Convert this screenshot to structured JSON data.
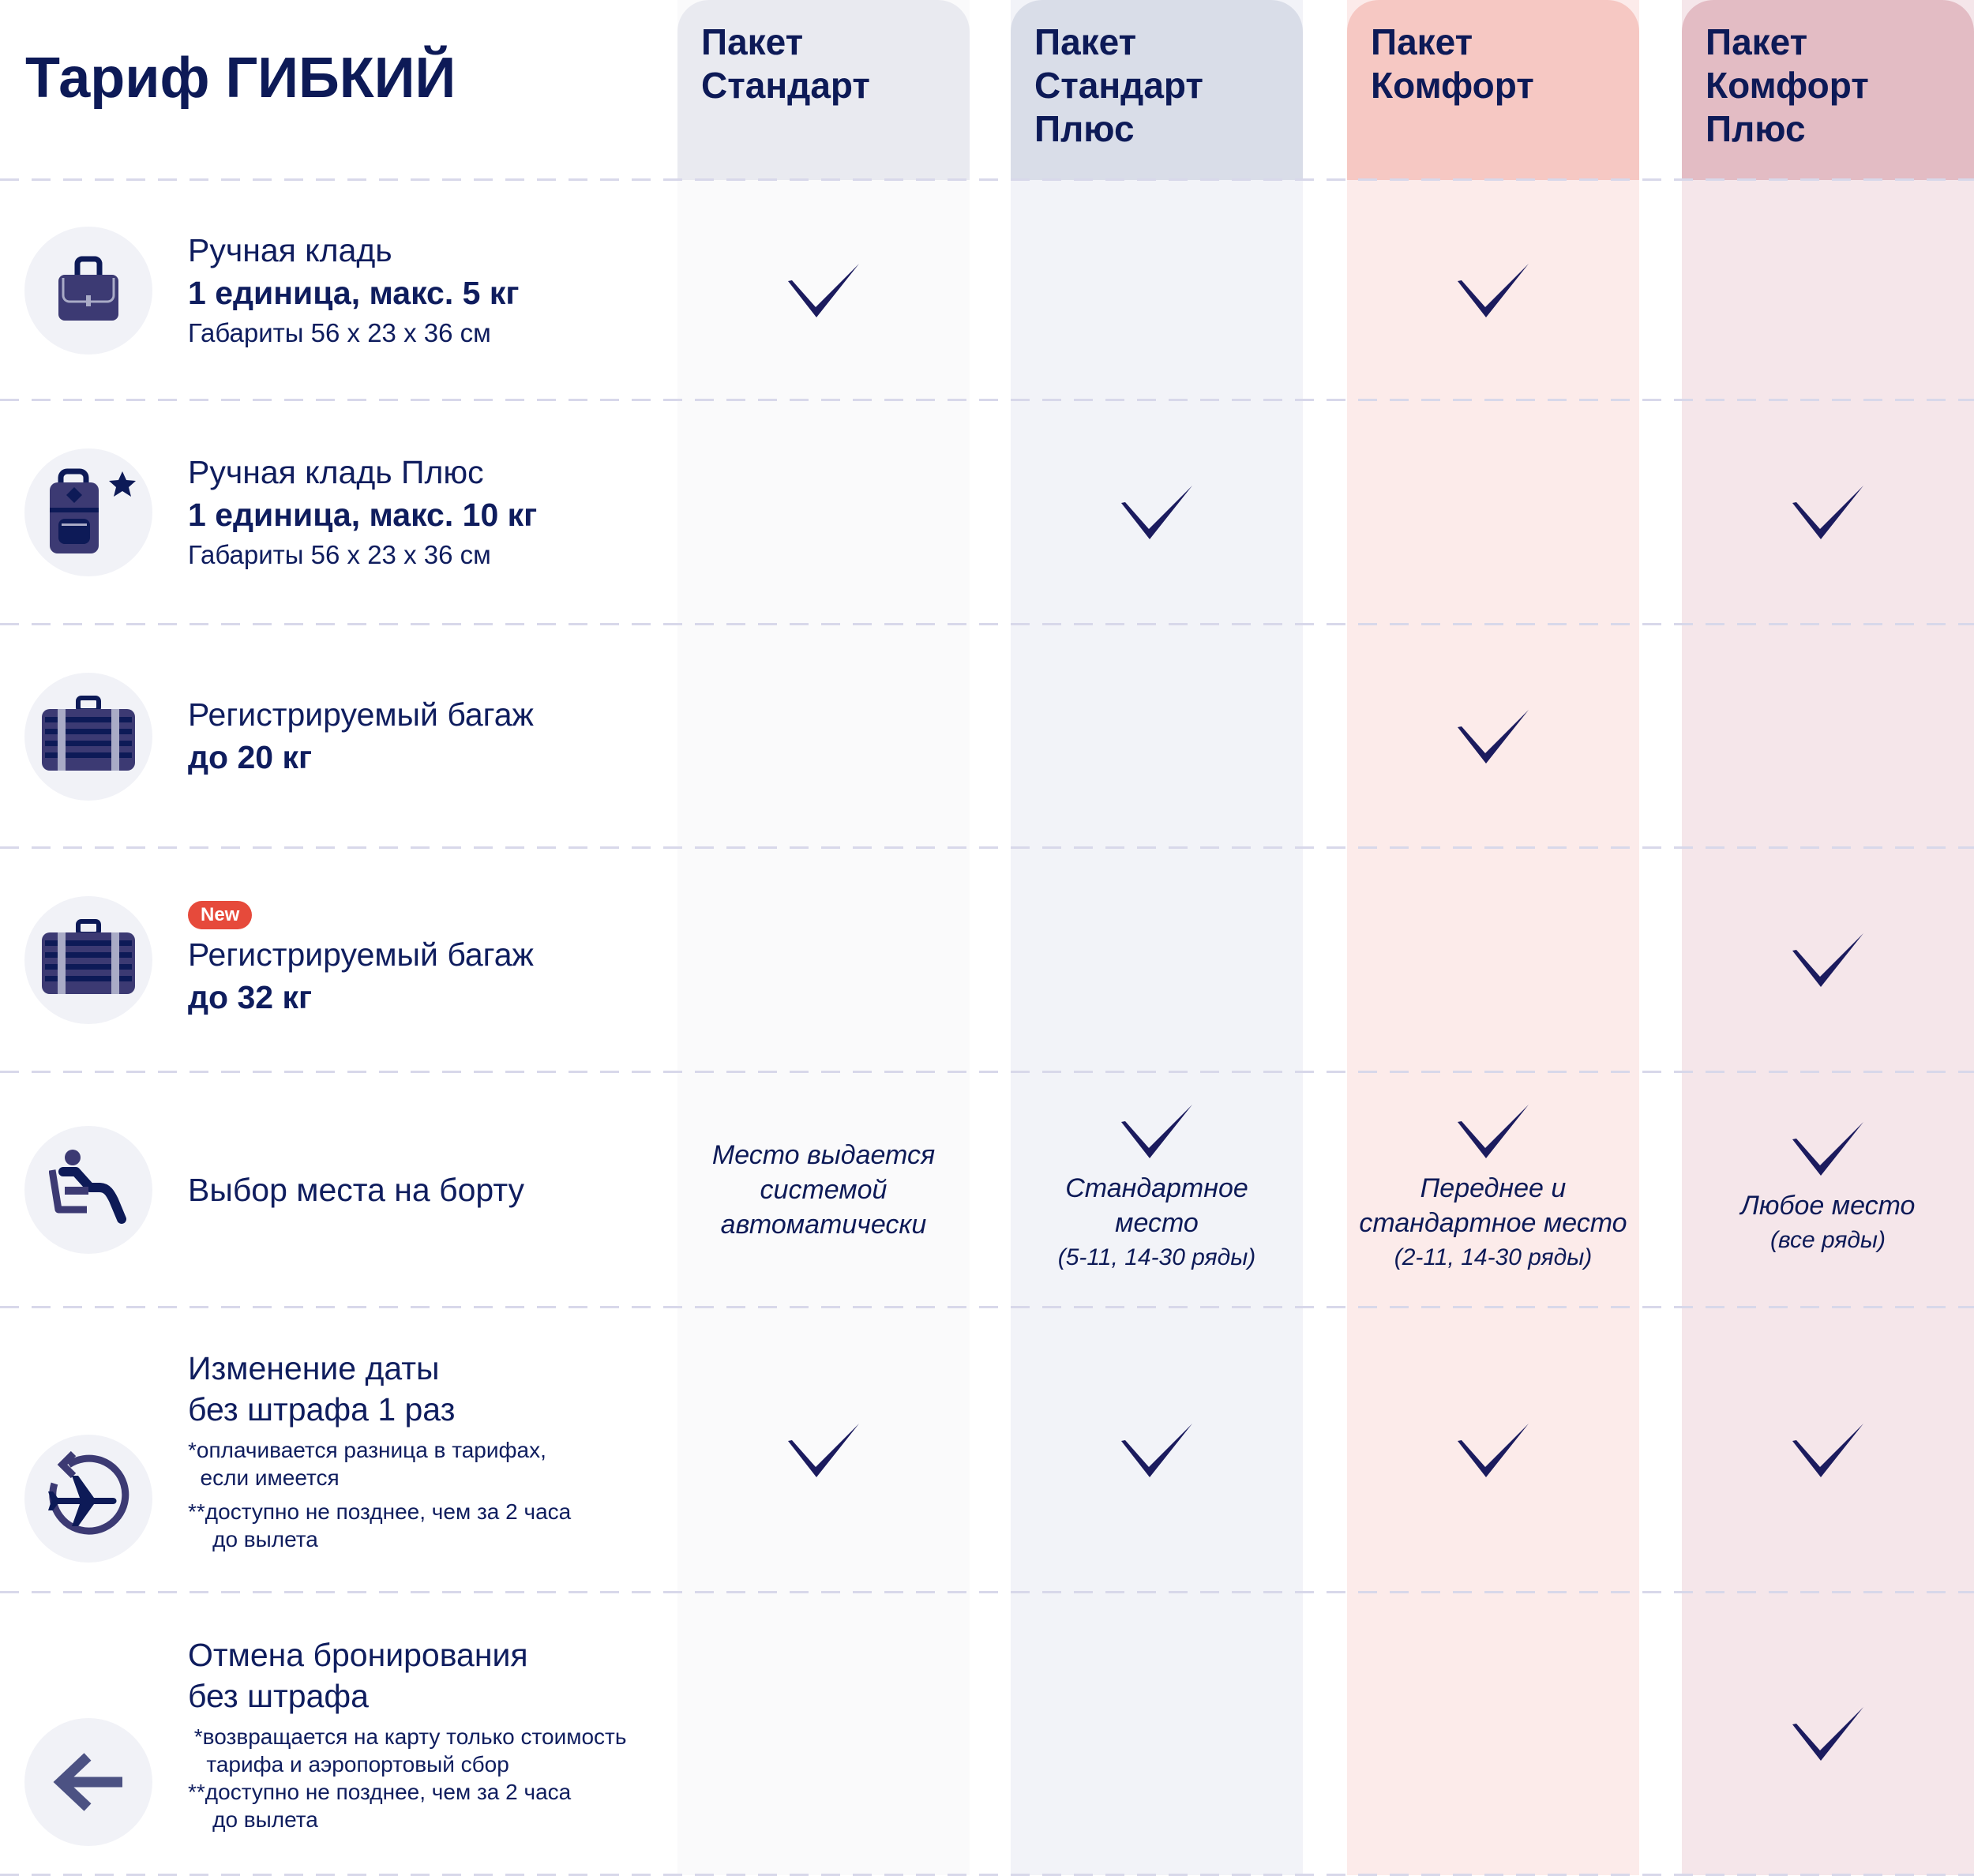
{
  "title": "Тариф ГИБКИЙ",
  "colors": {
    "text": "#0d1a57",
    "check": "#1b1b5e",
    "badge": "#e64a3b"
  },
  "columns": [
    {
      "label": "Пакет Стандарт",
      "head_bg": "#e9eaf0",
      "body_bg": "#fafafb"
    },
    {
      "label": "Пакет Стандарт Плюс",
      "head_bg": "#d9dde8",
      "body_bg": "#f2f3f8"
    },
    {
      "label": "Пакет Комфорт",
      "head_bg": "#f6c8c3",
      "body_bg": "#fcebea"
    },
    {
      "label": "Пакет Комфорт Плюс",
      "head_bg": "#e3bcc4",
      "body_bg": "#f5e6ea"
    }
  ],
  "rows": [
    {
      "icon": "briefcase-icon",
      "title": "Ручная кладь",
      "bold": "1 единица, макс. 5 кг",
      "sub": "Габариты 56 x 23 x 36 см",
      "cells": [
        {
          "check": true
        },
        {
          "check": false
        },
        {
          "check": true
        },
        {
          "check": false
        }
      ]
    },
    {
      "icon": "backpack-star-icon",
      "title": "Ручная кладь Плюс",
      "bold": "1 единица, макс. 10 кг",
      "sub": "Габариты 56 x 23 x 36 см",
      "cells": [
        {
          "check": false
        },
        {
          "check": true
        },
        {
          "check": false
        },
        {
          "check": true
        }
      ]
    },
    {
      "icon": "suitcase-icon",
      "title": "Регистрируемый багаж",
      "bold": "до 20 кг",
      "cells": [
        {
          "check": false
        },
        {
          "check": false
        },
        {
          "check": true
        },
        {
          "check": false
        }
      ]
    },
    {
      "icon": "suitcase-icon",
      "badge": "New",
      "title": "Регистрируемый багаж",
      "bold": "до 32 кг",
      "cells": [
        {
          "check": false
        },
        {
          "check": false
        },
        {
          "check": false
        },
        {
          "check": true
        }
      ]
    },
    {
      "icon": "seat-icon",
      "title": "Выбор места на борту",
      "cells": [
        {
          "check": false,
          "text": "Место выдается\nсистемой\nавтоматически"
        },
        {
          "check": true,
          "text": "Стандартное\nместо",
          "small": "(5-11, 14-30 ряды)"
        },
        {
          "check": true,
          "text": "Переднее и\nстандартное место",
          "small": "(2-11, 14-30 ряды)"
        },
        {
          "check": true,
          "text": "Любое место",
          "small": "(все ряды)"
        }
      ]
    },
    {
      "icon": "date-change-plane-icon",
      "title": "Изменение даты\nбез штрафа 1 раз",
      "notes": [
        "*оплачивается разница в тарифах,\n  если имеется",
        "**доступно не позднее, чем за 2 часа\n    до вылета"
      ],
      "cells": [
        {
          "check": true
        },
        {
          "check": true
        },
        {
          "check": true
        },
        {
          "check": true
        }
      ]
    },
    {
      "icon": "arrow-left-icon",
      "title": "Отмена бронирования\nбез штрафа",
      "notes": [
        " *возвращается на карту только стоимость\n   тарифа и аэропортовый сбор\n**доступно не позднее, чем за 2 часа\n    до вылета"
      ],
      "cells": [
        {
          "check": false
        },
        {
          "check": false
        },
        {
          "check": false
        },
        {
          "check": true
        }
      ]
    }
  ]
}
